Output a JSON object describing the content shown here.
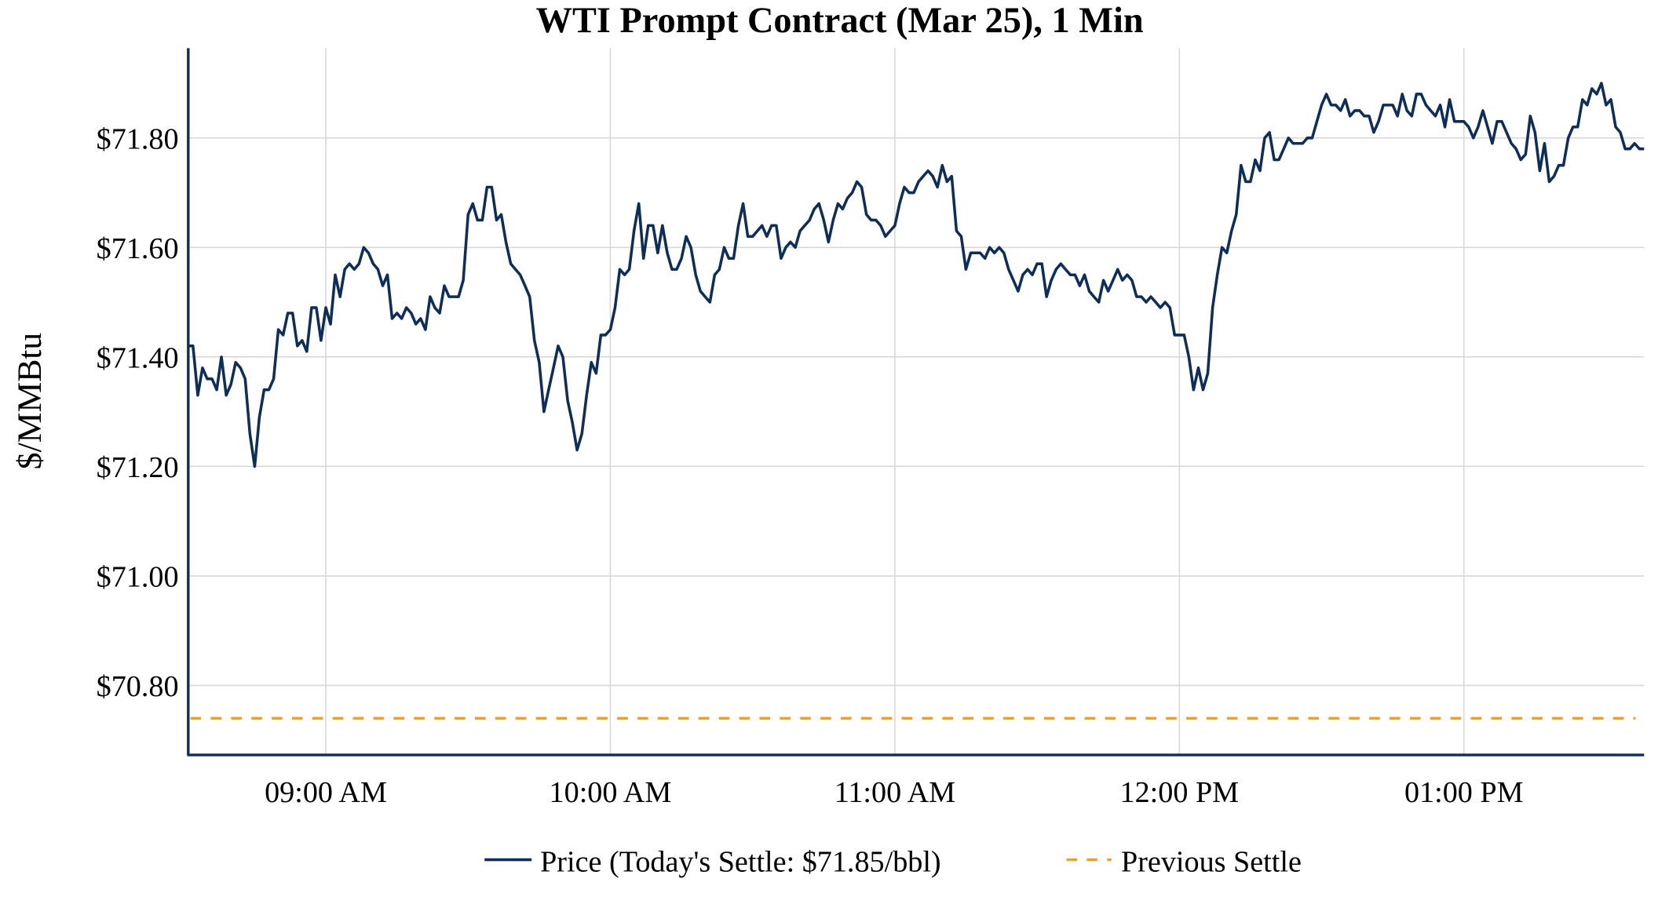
{
  "chart_data": {
    "type": "line",
    "title": "WTI Prompt Contract (Mar 25), 1 Min",
    "xlabel": "",
    "ylabel": "$/MMBtu",
    "ylim": [
      70.673,
      71.964
    ],
    "yticks": [
      70.8,
      71.0,
      71.2,
      71.4,
      71.6,
      71.8
    ],
    "ytick_labels": [
      "$70.80",
      "$71.00",
      "$71.20",
      "$71.40",
      "$71.60",
      "$71.80"
    ],
    "xtick_times": [
      "09:00",
      "10:00",
      "11:00",
      "12:00",
      "13:00"
    ],
    "xtick_labels": [
      "09:00 AM",
      "10:00 AM",
      "11:00 AM",
      "12:00 PM",
      "01:00 PM"
    ],
    "grid": true,
    "legend_position": "bottom",
    "colors": {
      "price": "#0d2d5a",
      "previous_settle": "#f5a01a",
      "axis": "#0d2d5a"
    },
    "series": [
      {
        "name": "Price (Today's Settle: $71.85/bbl)",
        "start_time": "08:31",
        "interval_minutes": 1,
        "values": [
          71.42,
          71.42,
          71.33,
          71.38,
          71.36,
          71.36,
          71.34,
          71.4,
          71.33,
          71.35,
          71.39,
          71.38,
          71.36,
          71.26,
          71.2,
          71.29,
          71.34,
          71.34,
          71.36,
          71.45,
          71.44,
          71.48,
          71.48,
          71.42,
          71.43,
          71.41,
          71.49,
          71.49,
          71.43,
          71.49,
          71.46,
          71.55,
          71.51,
          71.56,
          71.57,
          71.56,
          71.57,
          71.6,
          71.59,
          71.57,
          71.56,
          71.53,
          71.55,
          71.47,
          71.48,
          71.47,
          71.49,
          71.48,
          71.46,
          71.47,
          71.45,
          71.51,
          71.49,
          71.48,
          71.53,
          71.51,
          71.51,
          71.51,
          71.54,
          71.66,
          71.68,
          71.65,
          71.65,
          71.71,
          71.71,
          71.65,
          71.66,
          71.61,
          71.57,
          71.56,
          71.55,
          71.53,
          71.51,
          71.43,
          71.39,
          71.3,
          71.34,
          71.38,
          71.42,
          71.4,
          71.32,
          71.28,
          71.23,
          71.26,
          71.33,
          71.39,
          71.37,
          71.44,
          71.44,
          71.45,
          71.49,
          71.56,
          71.55,
          71.56,
          71.63,
          71.68,
          71.58,
          71.64,
          71.64,
          71.59,
          71.64,
          71.59,
          71.56,
          71.56,
          71.58,
          71.62,
          71.6,
          71.55,
          71.52,
          71.51,
          71.5,
          71.55,
          71.56,
          71.6,
          71.58,
          71.58,
          71.64,
          71.68,
          71.62,
          71.62,
          71.63,
          71.64,
          71.62,
          71.64,
          71.64,
          71.58,
          71.6,
          71.61,
          71.6,
          71.63,
          71.64,
          71.65,
          71.67,
          71.68,
          71.65,
          71.61,
          71.65,
          71.68,
          71.67,
          71.69,
          71.7,
          71.72,
          71.71,
          71.66,
          71.65,
          71.65,
          71.64,
          71.62,
          71.63,
          71.64,
          71.68,
          71.71,
          71.7,
          71.7,
          71.72,
          71.73,
          71.74,
          71.73,
          71.71,
          71.75,
          71.72,
          71.73,
          71.63,
          71.62,
          71.56,
          71.59,
          71.59,
          71.59,
          71.58,
          71.6,
          71.59,
          71.6,
          71.59,
          71.56,
          71.54,
          71.52,
          71.55,
          71.56,
          71.55,
          71.57,
          71.57,
          71.51,
          71.54,
          71.56,
          71.57,
          71.56,
          71.55,
          71.55,
          71.53,
          71.55,
          71.52,
          71.51,
          71.5,
          71.54,
          71.52,
          71.54,
          71.56,
          71.54,
          71.55,
          71.54,
          71.51,
          71.51,
          71.5,
          71.51,
          71.5,
          71.49,
          71.5,
          71.49,
          71.44,
          71.44,
          71.44,
          71.4,
          71.34,
          71.38,
          71.34,
          71.37,
          71.49,
          71.55,
          71.6,
          71.59,
          71.63,
          71.66,
          71.75,
          71.72,
          71.72,
          71.76,
          71.74,
          71.8,
          71.81,
          71.76,
          71.76,
          71.78,
          71.8,
          71.79,
          71.79,
          71.79,
          71.8,
          71.8,
          71.83,
          71.86,
          71.88,
          71.86,
          71.86,
          71.85,
          71.87,
          71.84,
          71.85,
          71.85,
          71.84,
          71.84,
          71.81,
          71.83,
          71.86,
          71.86,
          71.86,
          71.84,
          71.88,
          71.85,
          71.84,
          71.88,
          71.88,
          71.86,
          71.85,
          71.84,
          71.86,
          71.82,
          71.87,
          71.83,
          71.83,
          71.83,
          71.82,
          71.8,
          71.82,
          71.85,
          71.82,
          71.79,
          71.83,
          71.83,
          71.81,
          71.79,
          71.78,
          71.76,
          71.77,
          71.84,
          71.81,
          71.74,
          71.79,
          71.72,
          71.73,
          71.75,
          71.75,
          71.8,
          71.82,
          71.82,
          71.87,
          71.86,
          71.89,
          71.88,
          71.9,
          71.86,
          71.87,
          71.82,
          71.81,
          71.78,
          71.78,
          71.79,
          71.78,
          71.78
        ]
      },
      {
        "name": "Previous Settle",
        "constant": 70.74
      }
    ]
  }
}
